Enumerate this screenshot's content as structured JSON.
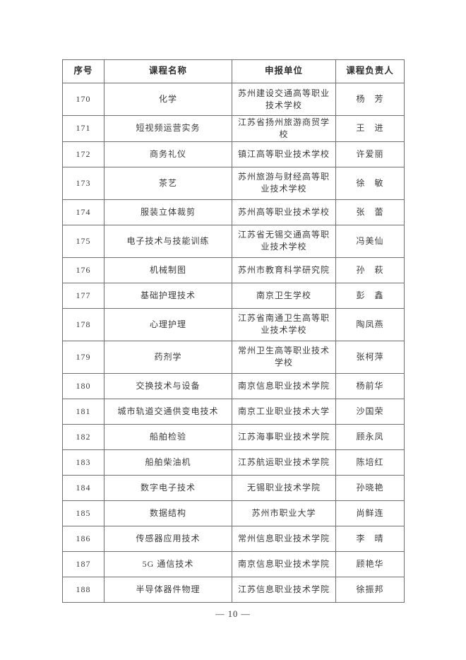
{
  "page": {
    "number_label": "— 10 —"
  },
  "table": {
    "headers": [
      "序号",
      "课程名称",
      "申报单位",
      "课程负责人"
    ],
    "rows": [
      {
        "no": "170",
        "course": "化学",
        "unit": "苏州建设交通高等职业技术学校",
        "leader": "杨　芳"
      },
      {
        "no": "171",
        "course": "短视频运营实务",
        "unit": "江苏省扬州旅游商贸学校",
        "leader": "王　进"
      },
      {
        "no": "172",
        "course": "商务礼仪",
        "unit": "镇江高等职业技术学校",
        "leader": "许爱丽"
      },
      {
        "no": "173",
        "course": "茶艺",
        "unit": "苏州旅游与财经高等职业技术学校",
        "leader": "徐　敏"
      },
      {
        "no": "174",
        "course": "服装立体裁剪",
        "unit": "苏州高等职业技术学校",
        "leader": "张　蕾"
      },
      {
        "no": "175",
        "course": "电子技术与技能训练",
        "unit": "江苏省无锡交通高等职业技术学校",
        "leader": "冯美仙"
      },
      {
        "no": "176",
        "course": "机械制图",
        "unit": "苏州市教育科学研究院",
        "leader": "孙　萩"
      },
      {
        "no": "177",
        "course": "基础护理技术",
        "unit": "南京卫生学校",
        "leader": "彭　鑫"
      },
      {
        "no": "178",
        "course": "心理护理",
        "unit": "江苏省南通卫生高等职业技术学校",
        "leader": "陶凤燕"
      },
      {
        "no": "179",
        "course": "药剂学",
        "unit": "常州卫生高等职业技术学校",
        "leader": "张柯萍"
      },
      {
        "no": "180",
        "course": "交换技术与设备",
        "unit": "南京信息职业技术学院",
        "leader": "杨前华"
      },
      {
        "no": "181",
        "course": "城市轨道交通供变电技术",
        "unit": "南京工业职业技术大学",
        "leader": "沙国荣"
      },
      {
        "no": "182",
        "course": "船舶检验",
        "unit": "江苏海事职业技术学院",
        "leader": "顾永凤"
      },
      {
        "no": "183",
        "course": "船舶柴油机",
        "unit": "江苏航运职业技术学院",
        "leader": "陈培红"
      },
      {
        "no": "184",
        "course": "数字电子技术",
        "unit": "无锡职业技术学院",
        "leader": "孙晓艳"
      },
      {
        "no": "185",
        "course": "数据结构",
        "unit": "苏州市职业大学",
        "leader": "尚鲜连"
      },
      {
        "no": "186",
        "course": "传感器应用技术",
        "unit": "常州信息职业技术学院",
        "leader": "李　晴"
      },
      {
        "no": "187",
        "course": "5G 通信技术",
        "unit": "南京信息职业技术学院",
        "leader": "顾艳华"
      },
      {
        "no": "188",
        "course": "半导体器件物理",
        "unit": "江苏信息职业技术学院",
        "leader": "徐振邦"
      }
    ]
  }
}
